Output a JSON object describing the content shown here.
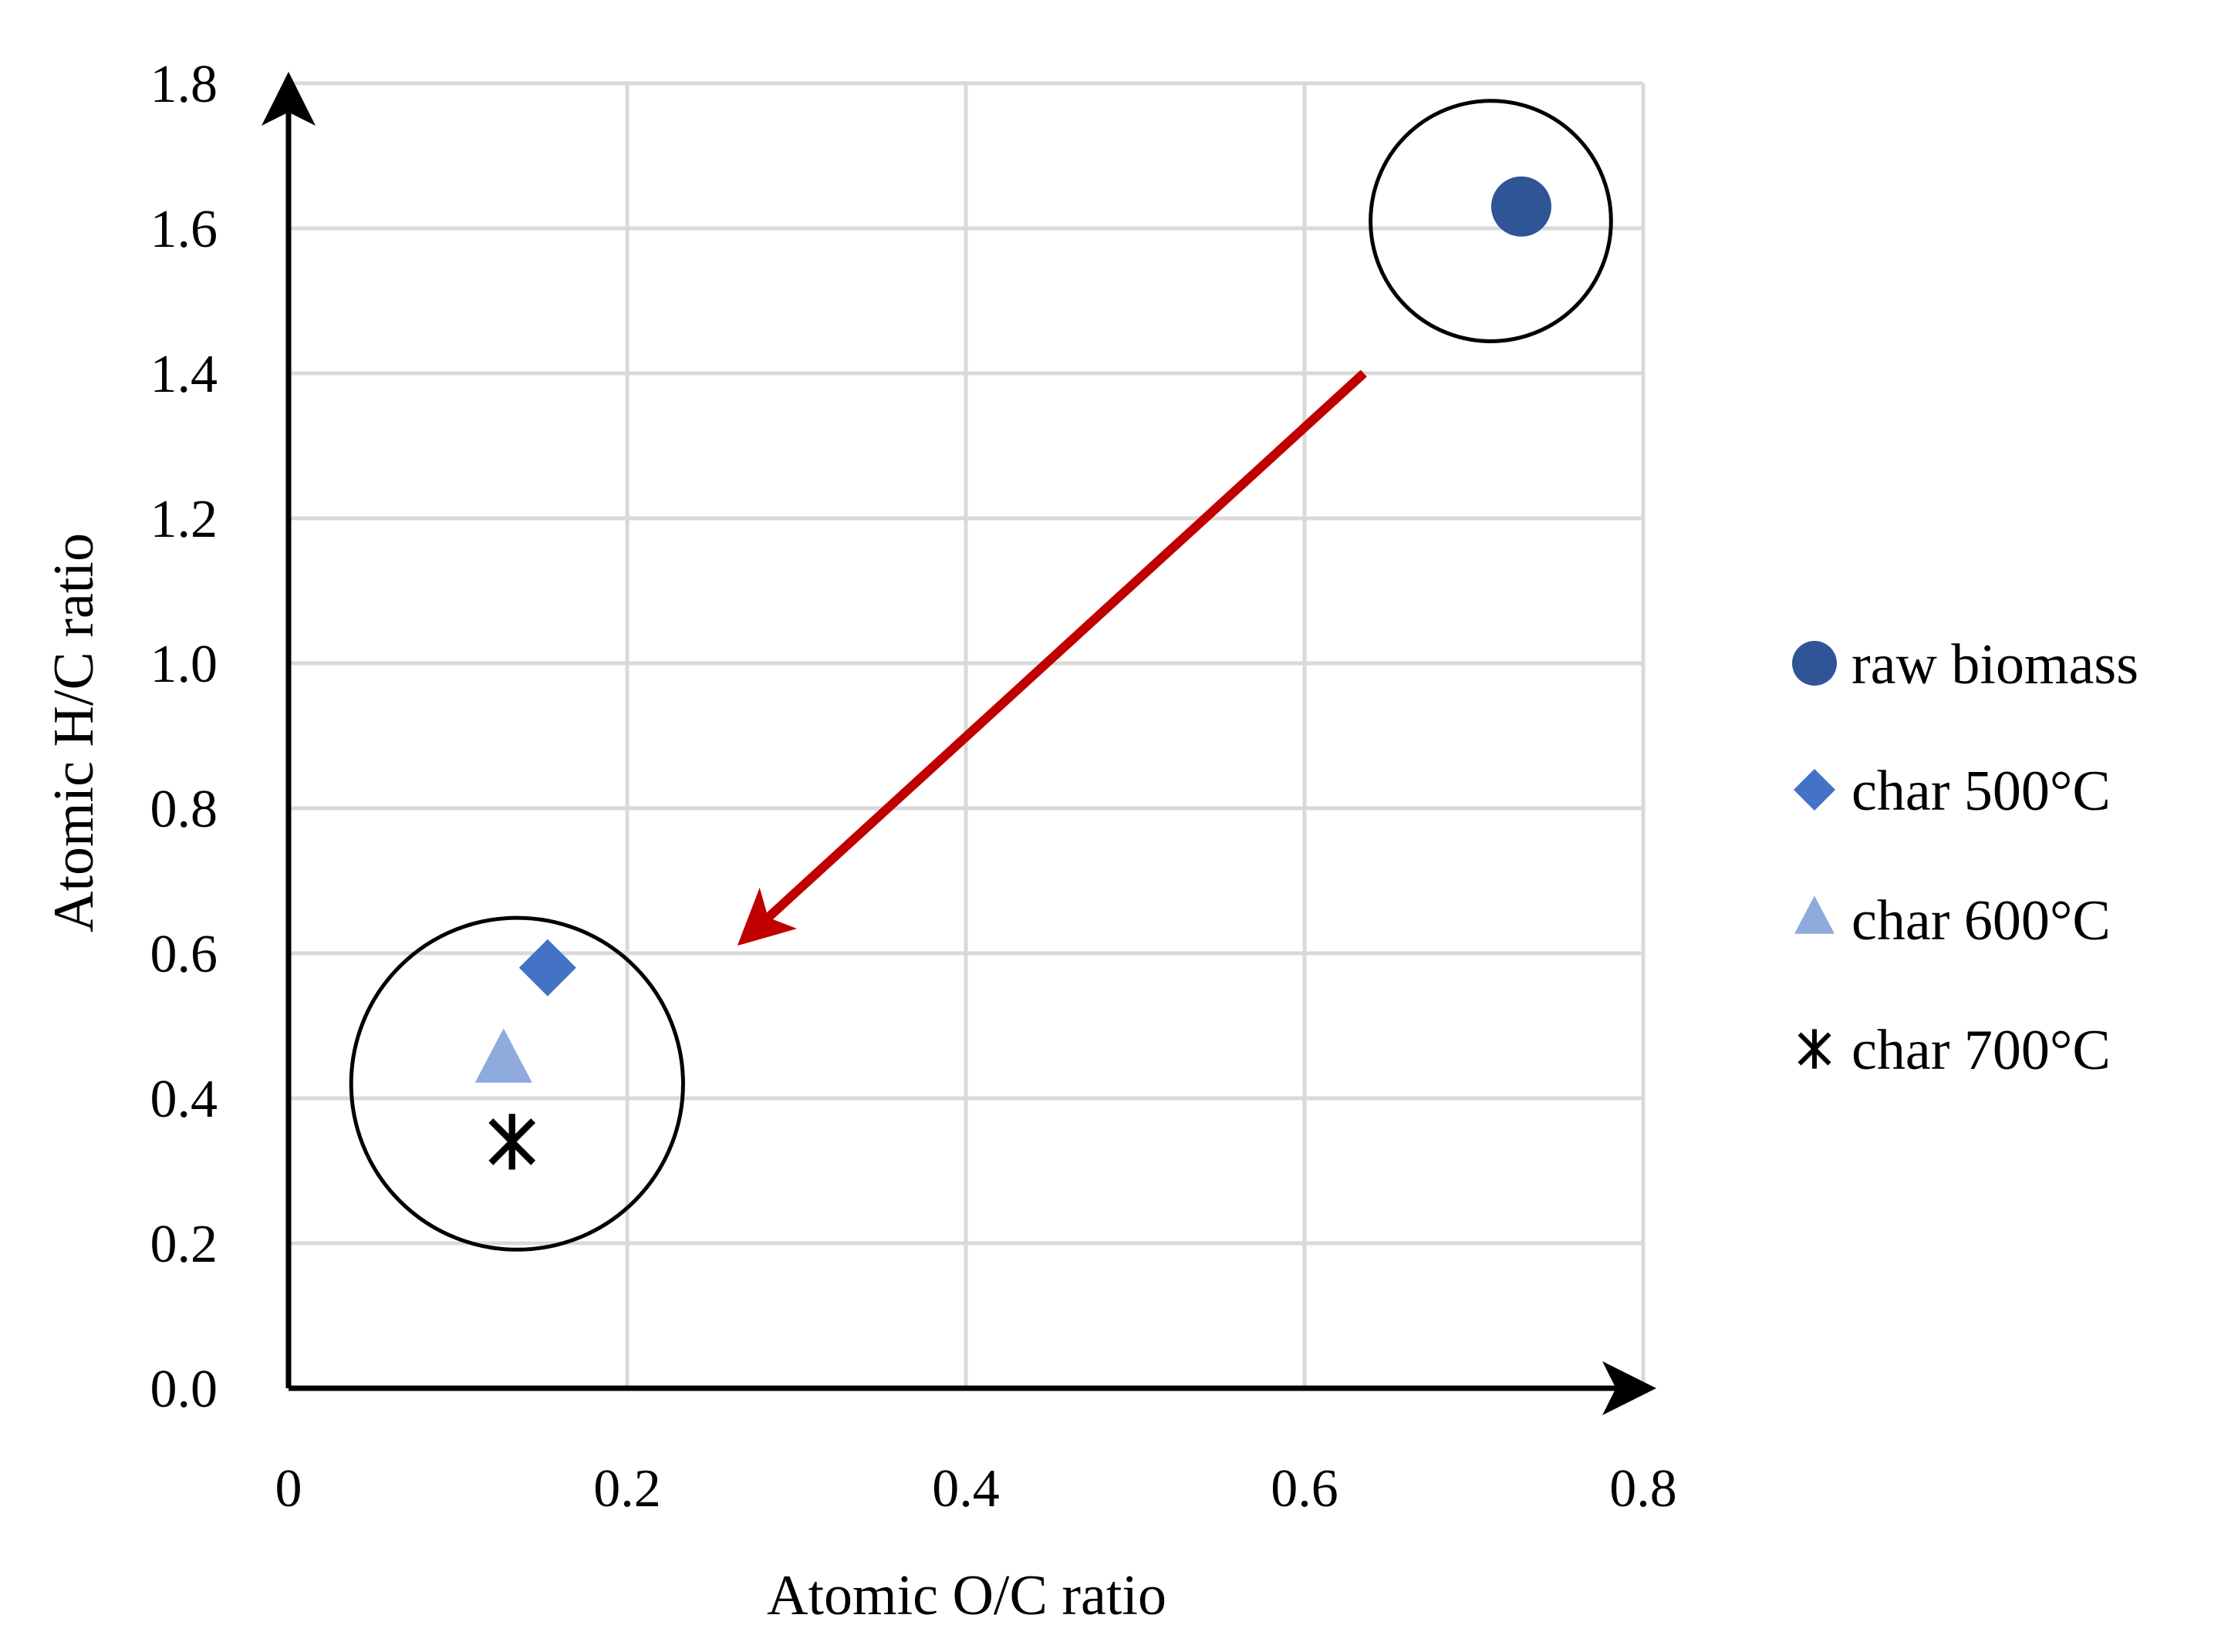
{
  "chart_data": {
    "type": "scatter",
    "title": "",
    "xlabel": "Atomic O/C ratio",
    "ylabel": "Atomic H/C ratio",
    "xlim": [
      0,
      0.8
    ],
    "ylim": [
      0.0,
      1.8
    ],
    "x_ticks": [
      0,
      0.2,
      0.4,
      0.6,
      0.8
    ],
    "x_tick_labels": [
      "0",
      "0.2",
      "0.4",
      "0.6",
      "0.8"
    ],
    "y_ticks": [
      0.0,
      0.2,
      0.4,
      0.6,
      0.8,
      1.0,
      1.2,
      1.4,
      1.6,
      1.8
    ],
    "y_tick_labels": [
      "0.0",
      "0.2",
      "0.4",
      "0.6",
      "0.8",
      "1.0",
      "1.2",
      "1.4",
      "1.6",
      "1.8"
    ],
    "grid": true,
    "legend_position": "right",
    "series": [
      {
        "name": "raw biomass",
        "marker": "circle",
        "color": "#2f5597",
        "x": 0.728,
        "y": 1.63
      },
      {
        "name": "char 500°C",
        "marker": "diamond",
        "color": "#4472c4",
        "x": 0.153,
        "y": 0.58
      },
      {
        "name": "char 600°C",
        "marker": "triangle",
        "color": "#8faadc",
        "x": 0.127,
        "y": 0.45
      },
      {
        "name": "char 700°C",
        "marker": "asterisk",
        "color": "#000000",
        "x": 0.132,
        "y": 0.34
      }
    ],
    "annotations": [
      {
        "kind": "group-circle",
        "group": "raw biomass",
        "cx": 0.71,
        "cy": 1.61,
        "r": 0.071
      },
      {
        "kind": "group-circle",
        "group": "chars",
        "cx": 0.135,
        "cy": 0.42,
        "r": 0.098
      },
      {
        "kind": "arrow",
        "color": "#c00000",
        "from": [
          0.635,
          1.4
        ],
        "to": [
          0.26,
          0.6
        ]
      }
    ]
  }
}
